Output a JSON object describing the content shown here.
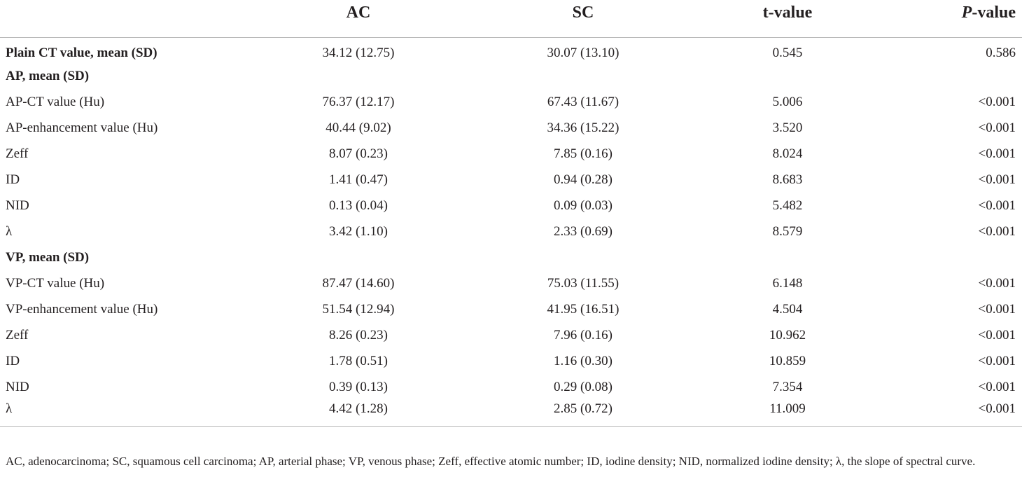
{
  "table": {
    "headers": [
      "",
      "AC",
      "SC",
      "t-value",
      "-value"
    ],
    "p_header_italic": "P",
    "rows": [
      {
        "type": "group",
        "label": "Plain CT value, mean (SD)",
        "ac": "34.12 (12.75)",
        "sc": "30.07 (13.10)",
        "t": "0.545",
        "p": "0.586"
      },
      {
        "type": "group",
        "label": "AP, mean (SD)",
        "ac": "",
        "sc": "",
        "t": "",
        "p": ""
      },
      {
        "type": "item",
        "label": "AP-CT value (Hu)",
        "ac": "76.37 (12.17)",
        "sc": "67.43 (11.67)",
        "t": "5.006",
        "p": "<0.001"
      },
      {
        "type": "item",
        "label": "AP-enhancement value (Hu)",
        "ac": "40.44 (9.02)",
        "sc": "34.36 (15.22)",
        "t": "3.520",
        "p": "<0.001"
      },
      {
        "type": "item",
        "label": "Zeff",
        "ac": "8.07 (0.23)",
        "sc": "7.85 (0.16)",
        "t": "8.024",
        "p": "<0.001"
      },
      {
        "type": "item",
        "label": "ID",
        "ac": "1.41 (0.47)",
        "sc": "0.94 (0.28)",
        "t": "8.683",
        "p": "<0.001"
      },
      {
        "type": "item",
        "label": "NID",
        "ac": "0.13 (0.04)",
        "sc": "0.09 (0.03)",
        "t": "5.482",
        "p": "<0.001"
      },
      {
        "type": "item",
        "label": "λ",
        "ac": "3.42 (1.10)",
        "sc": "2.33 (0.69)",
        "t": "8.579",
        "p": "<0.001"
      },
      {
        "type": "group",
        "label": "VP, mean (SD)",
        "ac": "",
        "sc": "",
        "t": "",
        "p": ""
      },
      {
        "type": "item",
        "label": "VP-CT value (Hu)",
        "ac": "87.47 (14.60)",
        "sc": "75.03 (11.55)",
        "t": "6.148",
        "p": "<0.001"
      },
      {
        "type": "item",
        "label": "VP-enhancement value (Hu)",
        "ac": "51.54 (12.94)",
        "sc": "41.95 (16.51)",
        "t": "4.504",
        "p": "<0.001"
      },
      {
        "type": "item",
        "label": "Zeff",
        "ac": "8.26 (0.23)",
        "sc": "7.96 (0.16)",
        "t": "10.962",
        "p": "<0.001"
      },
      {
        "type": "item",
        "label": "ID",
        "ac": "1.78 (0.51)",
        "sc": "1.16 (0.30)",
        "t": "10.859",
        "p": "<0.001"
      },
      {
        "type": "item",
        "label": "NID",
        "ac": "0.39 (0.13)",
        "sc": "0.29 (0.08)",
        "t": "7.354",
        "p": "<0.001"
      },
      {
        "type": "item",
        "label": "λ",
        "ac": "4.42 (1.28)",
        "sc": "2.85 (0.72)",
        "t": "11.009",
        "p": "<0.001"
      }
    ]
  },
  "footnote": "AC, adenocarcinoma; SC, squamous cell carcinoma; AP, arterial phase; VP, venous phase; Zeff, effective atomic number; ID, iodine density; NID, normalized iodine density; λ, the slope of spectral curve."
}
